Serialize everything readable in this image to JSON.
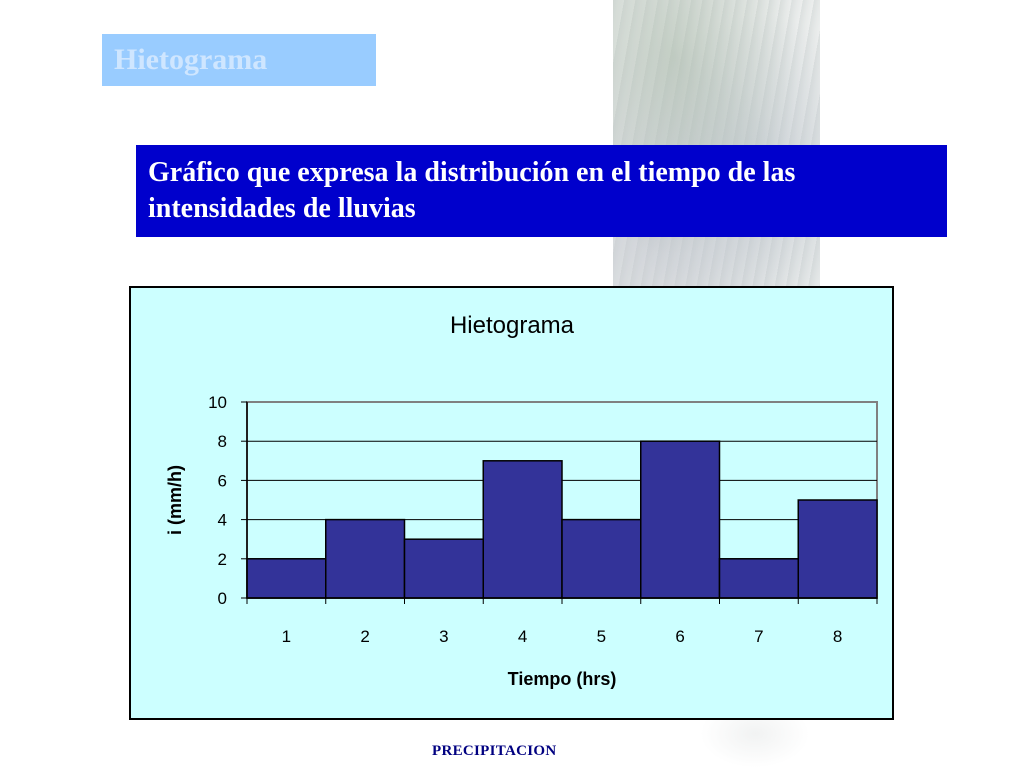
{
  "slide": {
    "title": "Hietograma",
    "definition": "Gráfico que expresa la distribución en el tiempo de las intensidades de lluvias",
    "footer": "PRECIPITACION"
  },
  "colors": {
    "title_box": "#99ccff",
    "definition_box": "#0000cc",
    "chart_background": "#ccffff",
    "bar_fill": "#333399"
  },
  "chart_data": {
    "type": "bar",
    "title": "Hietograma",
    "xlabel": "Tiempo (hrs)",
    "ylabel": "i (mm/h)",
    "categories": [
      "1",
      "2",
      "3",
      "4",
      "5",
      "6",
      "7",
      "8"
    ],
    "values": [
      2,
      4,
      3,
      7,
      4,
      8,
      2,
      5
    ],
    "ylim": [
      0,
      10
    ],
    "yticks": [
      0,
      2,
      4,
      6,
      8,
      10
    ],
    "grid": true,
    "legend": "none"
  }
}
